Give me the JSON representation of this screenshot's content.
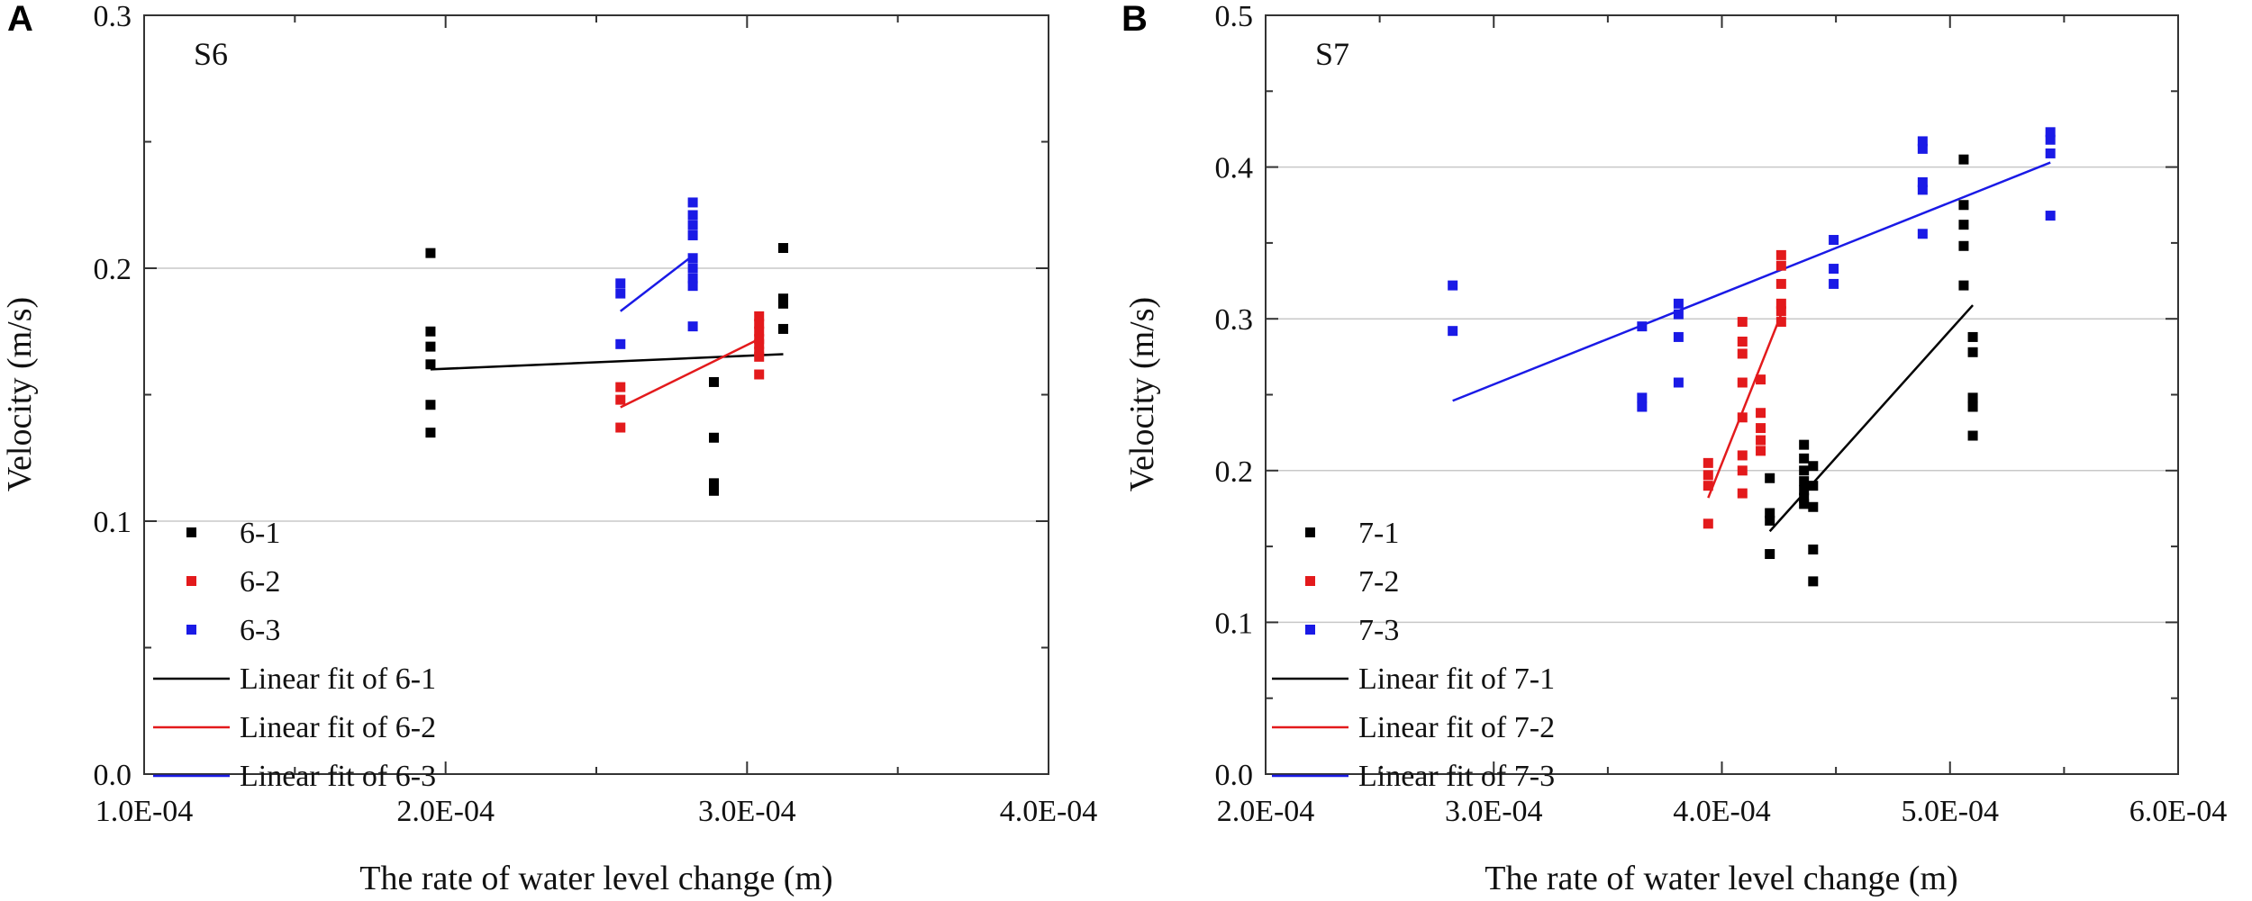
{
  "colors": {
    "black": "#000000",
    "red": "#e31a1c",
    "blue": "#1a1ae6",
    "grid": "#c8c8c8",
    "frame": "#333333"
  },
  "chart_data": [
    {
      "type": "scatter",
      "panel_letter": "A",
      "site_label": "S6",
      "xlabel": "The rate of water level change (m)",
      "ylabel": "Velocity (m/s)",
      "xlim": [
        0.0001,
        0.0004
      ],
      "ylim": [
        0.0,
        0.3
      ],
      "xticks": [
        0.0001,
        0.0002,
        0.0003,
        0.0004
      ],
      "xtick_labels": [
        "1.0E-04",
        "2.0E-04",
        "3.0E-04",
        "4.0E-04"
      ],
      "yticks": [
        0.0,
        0.1,
        0.2,
        0.3
      ],
      "ytick_labels": [
        "0.0",
        "0.1",
        "0.2",
        "0.3"
      ],
      "grid": "horizontal",
      "legend_position": "bottom-left",
      "series": [
        {
          "name": "6-1",
          "color": "#000000",
          "points": [
            [
              0.000195,
              0.206
            ],
            [
              0.000195,
              0.175
            ],
            [
              0.000195,
              0.169
            ],
            [
              0.000195,
              0.162
            ],
            [
              0.000195,
              0.146
            ],
            [
              0.000195,
              0.135
            ],
            [
              0.000289,
              0.155
            ],
            [
              0.000289,
              0.133
            ],
            [
              0.000289,
              0.115
            ],
            [
              0.000289,
              0.112
            ],
            [
              0.000312,
              0.208
            ],
            [
              0.000312,
              0.188
            ],
            [
              0.000312,
              0.186
            ],
            [
              0.000312,
              0.176
            ]
          ]
        },
        {
          "name": "6-2",
          "color": "#e31a1c",
          "points": [
            [
              0.000258,
              0.153
            ],
            [
              0.000258,
              0.148
            ],
            [
              0.000258,
              0.137
            ],
            [
              0.000304,
              0.181
            ],
            [
              0.000304,
              0.178
            ],
            [
              0.000304,
              0.175
            ],
            [
              0.000304,
              0.172
            ],
            [
              0.000304,
              0.17
            ],
            [
              0.000304,
              0.167
            ],
            [
              0.000304,
              0.165
            ],
            [
              0.000304,
              0.158
            ]
          ]
        },
        {
          "name": "6-3",
          "color": "#1a1ae6",
          "points": [
            [
              0.000258,
              0.194
            ],
            [
              0.000258,
              0.19
            ],
            [
              0.000258,
              0.17
            ],
            [
              0.000282,
              0.226
            ],
            [
              0.000282,
              0.221
            ],
            [
              0.000282,
              0.217
            ],
            [
              0.000282,
              0.213
            ],
            [
              0.000282,
              0.204
            ],
            [
              0.000282,
              0.2
            ],
            [
              0.000282,
              0.196
            ],
            [
              0.000282,
              0.193
            ],
            [
              0.000282,
              0.177
            ]
          ]
        }
      ],
      "fits": [
        {
          "name": "Linear fit of 6-1",
          "color": "#000000",
          "x": [
            0.000195,
            0.000312
          ],
          "y": [
            0.16,
            0.166
          ]
        },
        {
          "name": "Linear fit of 6-2",
          "color": "#e31a1c",
          "x": [
            0.000258,
            0.000304
          ],
          "y": [
            0.145,
            0.172
          ]
        },
        {
          "name": "Linear fit of 6-3",
          "color": "#1a1ae6",
          "x": [
            0.000258,
            0.000282
          ],
          "y": [
            0.183,
            0.205
          ]
        }
      ]
    },
    {
      "type": "scatter",
      "panel_letter": "B",
      "site_label": "S7",
      "xlabel": "The rate of water level change (m)",
      "ylabel": "Velocity (m/s)",
      "xlim": [
        0.0002,
        0.0006
      ],
      "ylim": [
        0.0,
        0.5
      ],
      "xticks": [
        0.0002,
        0.0003,
        0.0004,
        0.0005,
        0.0006
      ],
      "xtick_labels": [
        "2.0E-04",
        "3.0E-04",
        "4.0E-04",
        "5.0E-04",
        "6.0E-04"
      ],
      "yticks": [
        0.0,
        0.1,
        0.2,
        0.3,
        0.4,
        0.5
      ],
      "ytick_labels": [
        "0.0",
        "0.1",
        "0.2",
        "0.3",
        "0.4",
        "0.5"
      ],
      "grid": "horizontal",
      "legend_position": "bottom-left",
      "series": [
        {
          "name": "7-1",
          "color": "#000000",
          "points": [
            [
              0.000421,
              0.195
            ],
            [
              0.000421,
              0.172
            ],
            [
              0.000421,
              0.167
            ],
            [
              0.000421,
              0.145
            ],
            [
              0.000436,
              0.217
            ],
            [
              0.000436,
              0.208
            ],
            [
              0.000436,
              0.2
            ],
            [
              0.000436,
              0.193
            ],
            [
              0.000436,
              0.187
            ],
            [
              0.000436,
              0.182
            ],
            [
              0.000436,
              0.178
            ],
            [
              0.00044,
              0.203
            ],
            [
              0.00044,
              0.19
            ],
            [
              0.00044,
              0.176
            ],
            [
              0.00044,
              0.148
            ],
            [
              0.00044,
              0.127
            ],
            [
              0.000506,
              0.405
            ],
            [
              0.000506,
              0.375
            ],
            [
              0.000506,
              0.362
            ],
            [
              0.000506,
              0.348
            ],
            [
              0.000506,
              0.322
            ],
            [
              0.00051,
              0.288
            ],
            [
              0.00051,
              0.278
            ],
            [
              0.00051,
              0.248
            ],
            [
              0.00051,
              0.242
            ],
            [
              0.00051,
              0.223
            ]
          ]
        },
        {
          "name": "7-2",
          "color": "#e31a1c",
          "points": [
            [
              0.000394,
              0.205
            ],
            [
              0.000394,
              0.197
            ],
            [
              0.000394,
              0.19
            ],
            [
              0.000394,
              0.165
            ],
            [
              0.000409,
              0.298
            ],
            [
              0.000409,
              0.285
            ],
            [
              0.000409,
              0.277
            ],
            [
              0.000409,
              0.258
            ],
            [
              0.000409,
              0.235
            ],
            [
              0.000409,
              0.21
            ],
            [
              0.000409,
              0.2
            ],
            [
              0.000409,
              0.185
            ],
            [
              0.000417,
              0.26
            ],
            [
              0.000417,
              0.238
            ],
            [
              0.000417,
              0.228
            ],
            [
              0.000417,
              0.22
            ],
            [
              0.000417,
              0.213
            ],
            [
              0.000426,
              0.342
            ],
            [
              0.000426,
              0.335
            ],
            [
              0.000426,
              0.323
            ],
            [
              0.000426,
              0.31
            ],
            [
              0.000426,
              0.305
            ],
            [
              0.000426,
              0.298
            ]
          ]
        },
        {
          "name": "7-3",
          "color": "#1a1ae6",
          "points": [
            [
              0.000282,
              0.322
            ],
            [
              0.000282,
              0.292
            ],
            [
              0.000365,
              0.295
            ],
            [
              0.000365,
              0.248
            ],
            [
              0.000365,
              0.242
            ],
            [
              0.000381,
              0.31
            ],
            [
              0.000381,
              0.303
            ],
            [
              0.000381,
              0.288
            ],
            [
              0.000381,
              0.258
            ],
            [
              0.000449,
              0.352
            ],
            [
              0.000449,
              0.333
            ],
            [
              0.000449,
              0.323
            ],
            [
              0.000488,
              0.417
            ],
            [
              0.000488,
              0.412
            ],
            [
              0.000488,
              0.39
            ],
            [
              0.000488,
              0.385
            ],
            [
              0.000488,
              0.356
            ],
            [
              0.000544,
              0.423
            ],
            [
              0.000544,
              0.418
            ],
            [
              0.000544,
              0.409
            ],
            [
              0.000544,
              0.368
            ]
          ]
        }
      ],
      "fits": [
        {
          "name": "Linear fit of 7-1",
          "color": "#000000",
          "x": [
            0.000421,
            0.00051
          ],
          "y": [
            0.16,
            0.309
          ]
        },
        {
          "name": "Linear fit of 7-2",
          "color": "#e31a1c",
          "x": [
            0.000394,
            0.000426
          ],
          "y": [
            0.182,
            0.303
          ]
        },
        {
          "name": "Linear fit of 7-3",
          "color": "#1a1ae6",
          "x": [
            0.000282,
            0.000544
          ],
          "y": [
            0.246,
            0.403
          ]
        }
      ]
    }
  ]
}
